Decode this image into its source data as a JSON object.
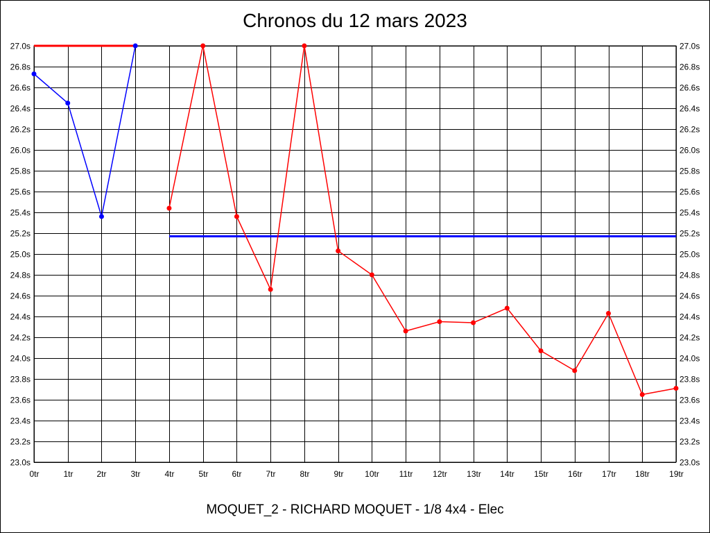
{
  "chart_data": {
    "type": "line",
    "title": "Chronos du 12 mars 2023",
    "subtitle": "MOQUET_2 - RICHARD MOQUET - 1/8 4x4 - Elec",
    "xlabel": "",
    "ylabel": "",
    "categories": [
      "0tr",
      "1tr",
      "2tr",
      "3tr",
      "4tr",
      "5tr",
      "6tr",
      "7tr",
      "8tr",
      "9tr",
      "10tr",
      "11tr",
      "12tr",
      "13tr",
      "14tr",
      "15tr",
      "16tr",
      "17tr",
      "18tr",
      "19tr"
    ],
    "ylim": [
      23.0,
      27.0
    ],
    "y_ticks": [
      "23.0s",
      "23.2s",
      "23.4s",
      "23.6s",
      "23.8s",
      "24.0s",
      "24.2s",
      "24.4s",
      "24.6s",
      "24.8s",
      "25.0s",
      "25.2s",
      "25.4s",
      "25.6s",
      "25.8s",
      "26.0s",
      "26.2s",
      "26.4s",
      "26.6s",
      "26.8s",
      "27.0s"
    ],
    "grid": true,
    "series": [
      {
        "color": "#0000ff",
        "points": [
          [
            0,
            26.73
          ],
          [
            1,
            26.45
          ],
          [
            2,
            25.36
          ],
          [
            3,
            27.0
          ]
        ]
      },
      {
        "color": "#ff0000",
        "points": [
          [
            4,
            25.44
          ],
          [
            5,
            27.0
          ],
          [
            6,
            25.36
          ],
          [
            7,
            24.66
          ],
          [
            8,
            27.0
          ],
          [
            9,
            25.03
          ],
          [
            10,
            24.8
          ],
          [
            11,
            24.26
          ],
          [
            12,
            24.35
          ],
          [
            13,
            24.34
          ],
          [
            14,
            24.48
          ],
          [
            15,
            24.07
          ],
          [
            16,
            23.88
          ],
          [
            17,
            24.43
          ],
          [
            18,
            23.65
          ],
          [
            19,
            23.71
          ]
        ]
      }
    ],
    "reference_lines": [
      {
        "color": "#ff0000",
        "y": 27.0,
        "x_from": 0,
        "x_to": 3
      },
      {
        "color": "#0000ff",
        "y": 25.17,
        "x_from": 4,
        "x_to": 19
      }
    ]
  }
}
